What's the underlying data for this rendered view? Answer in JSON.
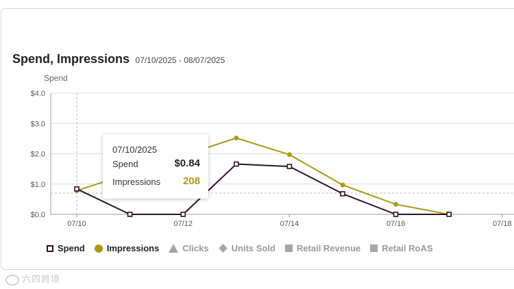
{
  "widget": {
    "title": "Spend, Impressions",
    "date_range": "07/10/2025 - 08/07/2025",
    "y_axis_title": "Spend"
  },
  "tooltip": {
    "date": "07/10/2025",
    "spend_label": "Spend",
    "spend_value": "$0.84",
    "impressions_label": "Impressions",
    "impressions_value": "208"
  },
  "legend": {
    "items": [
      {
        "label": "Spend",
        "icon": "open-square-icon",
        "active": true
      },
      {
        "label": "Impressions",
        "icon": "circle-icon",
        "active": true
      },
      {
        "label": "Clicks",
        "icon": "triangle-icon",
        "active": false
      },
      {
        "label": "Units Sold",
        "icon": "diamond-icon",
        "active": false
      },
      {
        "label": "Retail Revenue",
        "icon": "square-icon",
        "active": false
      },
      {
        "label": "Retail RoAS",
        "icon": "square-icon",
        "active": false
      }
    ]
  },
  "watermark": "六四跨境",
  "colors": {
    "spend": "#2e0f2c",
    "impressions": "#ad9812",
    "inactive": "#a6a6a6"
  },
  "chart_data": {
    "type": "line",
    "x": [
      "07/10",
      "07/11",
      "07/12",
      "07/13",
      "07/14",
      "07/15",
      "07/16",
      "07/17"
    ],
    "x_tick_labels": [
      "07/10",
      "07/12",
      "07/14",
      "07/16",
      "07/18"
    ],
    "y_tick_labels": [
      "$0.0",
      "$1.0",
      "$2.0",
      "$3.0",
      "$4.0"
    ],
    "ylim": [
      0,
      4
    ],
    "ylabel": "Spend",
    "grid": true,
    "legend_position": "bottom",
    "series": [
      {
        "name": "Spend",
        "values": [
          0.84,
          0,
          0,
          1.66,
          1.58,
          0.68,
          0,
          0
        ]
      },
      {
        "name": "Impressions",
        "values": [
          0.78,
          null,
          null,
          2.52,
          1.97,
          0.97,
          0.33,
          0
        ]
      }
    ],
    "hover_guide": {
      "x": "07/10",
      "y": 0.7
    }
  }
}
